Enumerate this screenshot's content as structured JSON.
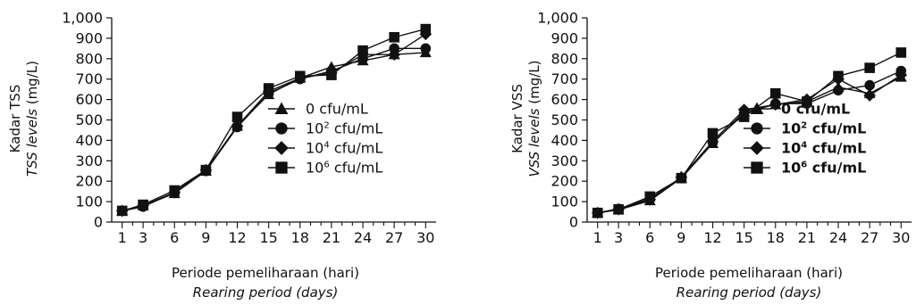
{
  "chart_data": [
    {
      "type": "line",
      "title": "",
      "ylabel": "Kadar TSS",
      "ylabel2": "TSS levels (mg/L)",
      "ylabel2_italic": "TSS levels",
      "ylabel2_unit": "(mg/L)",
      "xlabel": "Periode pemeliharaan (hari)",
      "xlabel2": "Rearing period (days)",
      "x": [
        1,
        3,
        6,
        9,
        12,
        15,
        18,
        21,
        24,
        27,
        30
      ],
      "ylim": [
        0,
        1000
      ],
      "yticks": [
        "0",
        "100",
        "200",
        "300",
        "400",
        "500",
        "600",
        "700",
        "800",
        "900",
        "1,000"
      ],
      "legend_bold": false,
      "series": [
        {
          "name": "0 cfu/mL",
          "legend_base": "0 cfu/mL",
          "legend_exp": "",
          "legend_suffix": "",
          "marker": "triangle",
          "values": [
            55,
            80,
            140,
            250,
            470,
            625,
            705,
            760,
            790,
            820,
            830
          ]
        },
        {
          "name": "10² cfu/mL",
          "legend_base": "10",
          "legend_exp": "2",
          "legend_suffix": " cfu/mL",
          "marker": "circle",
          "values": [
            55,
            75,
            145,
            250,
            465,
            630,
            700,
            740,
            800,
            850,
            850
          ]
        },
        {
          "name": "10⁴ cfu/mL",
          "legend_base": "10",
          "legend_exp": "4",
          "legend_suffix": " cfu/mL",
          "marker": "diamond",
          "values": [
            55,
            80,
            145,
            255,
            470,
            640,
            705,
            730,
            820,
            820,
            920
          ]
        },
        {
          "name": "10⁶ cfu/mL",
          "legend_base": "10",
          "legend_exp": "6",
          "legend_suffix": " cfu/mL",
          "marker": "square",
          "values": [
            55,
            85,
            155,
            255,
            515,
            655,
            715,
            720,
            840,
            905,
            945
          ]
        }
      ]
    },
    {
      "type": "line",
      "title": "",
      "ylabel": "Kadar VSS",
      "ylabel2": "VSS levels (mg/L)",
      "ylabel2_italic": "VSS levels",
      "ylabel2_unit": "(mg/L)",
      "xlabel": "Periode pemeliharaan (hari)",
      "xlabel2": "Rearing period (days)",
      "x": [
        1,
        3,
        6,
        9,
        12,
        15,
        18,
        21,
        24,
        27,
        30
      ],
      "ylim": [
        0,
        1000
      ],
      "yticks": [
        "0",
        "100",
        "200",
        "300",
        "400",
        "500",
        "600",
        "700",
        "800",
        "900",
        "1,000"
      ],
      "legend_bold": true,
      "series": [
        {
          "name": "0 cfu/mL",
          "legend_base": "0 cfu/mL",
          "legend_exp": "",
          "legend_suffix": "",
          "marker": "triangle",
          "values": [
            45,
            60,
            105,
            215,
            385,
            540,
            575,
            590,
            660,
            630,
            710
          ]
        },
        {
          "name": "10² cfu/mL",
          "legend_base": "10",
          "legend_exp": "2",
          "legend_suffix": " cfu/mL",
          "marker": "circle",
          "values": [
            45,
            65,
            115,
            215,
            390,
            530,
            580,
            580,
            645,
            670,
            740
          ]
        },
        {
          "name": "10⁴ cfu/mL",
          "legend_base": "10",
          "legend_exp": "4",
          "legend_suffix": " cfu/mL",
          "marker": "diamond",
          "values": [
            45,
            62,
            110,
            220,
            395,
            550,
            575,
            600,
            700,
            620,
            720
          ]
        },
        {
          "name": "10⁶ cfu/mL",
          "legend_base": "10",
          "legend_exp": "6",
          "legend_suffix": " cfu/mL",
          "marker": "square",
          "values": [
            45,
            62,
            125,
            215,
            435,
            515,
            630,
            590,
            715,
            755,
            830
          ]
        }
      ]
    }
  ]
}
